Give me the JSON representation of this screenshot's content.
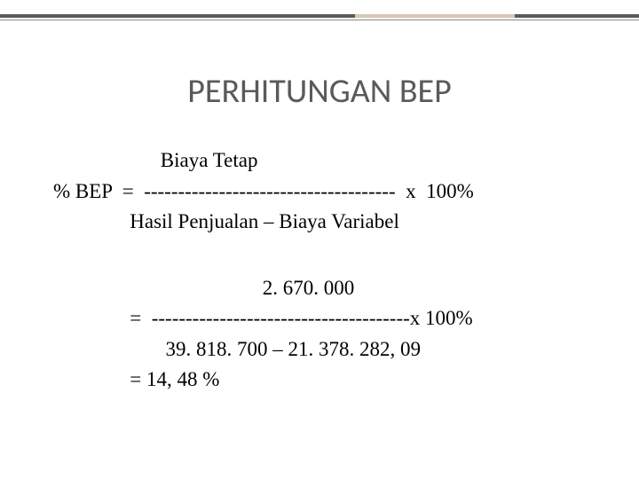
{
  "slide": {
    "title": "PERHITUNGAN BEP",
    "colors": {
      "background": "#ffffff",
      "title_color": "#5a5a5a",
      "text_color": "#000000",
      "border_main": "#5a5a5a",
      "border_accent": "#d4c9b8",
      "border_thin": "#888888"
    },
    "typography": {
      "title_font": "Calibri",
      "title_size_pt": 28,
      "body_font": "Georgia",
      "body_size_pt": 18
    },
    "formula1": {
      "numerator": "                     Biaya Tetap",
      "equation": "% BEP  =  -------------------------------------  x  100%",
      "denominator": "               Hasil Penjualan – Biaya Variabel"
    },
    "formula2": {
      "numerator": "                                         2. 670. 000",
      "equation": "               =  --------------------------------------x 100%",
      "denominator": "                      39. 818. 700 – 21. 378. 282, 09",
      "result": "               = 14, 48 %"
    }
  }
}
